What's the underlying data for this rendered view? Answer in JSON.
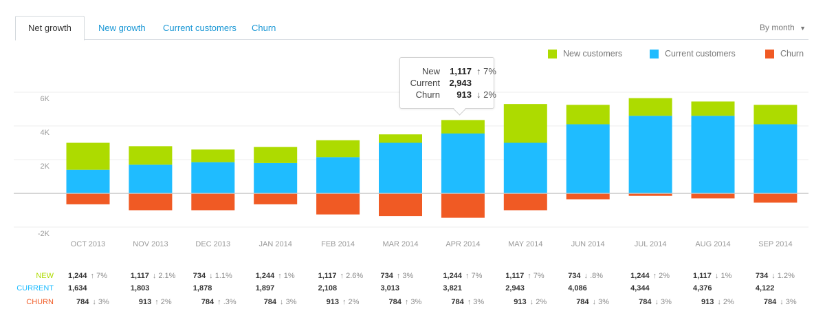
{
  "tabs": [
    {
      "label": "Net growth",
      "active": true
    },
    {
      "label": "New growth"
    },
    {
      "label": "Current customers"
    },
    {
      "label": "Churn"
    }
  ],
  "period_selector": {
    "label": "By month",
    "icon": "caret-down-icon"
  },
  "colors": {
    "new": "#addb00",
    "current": "#1fbcff",
    "churn": "#f05a24",
    "accent": "#1a97d5"
  },
  "chart_data": {
    "type": "bar",
    "stacked": true,
    "categories": [
      "OCT 2013",
      "NOV 2013",
      "DEC 2013",
      "JAN 2014",
      "FEB 2014",
      "MAR 2014",
      "APR 2014",
      "MAY 2014",
      "JUN 2014",
      "JUL 2014",
      "AUG 2014",
      "SEP 2014"
    ],
    "series": [
      {
        "name": "New customers",
        "key": "new",
        "values": [
          1600,
          1100,
          750,
          950,
          1000,
          500,
          800,
          2300,
          1150,
          1050,
          850,
          1150
        ]
      },
      {
        "name": "Current customers",
        "key": "current",
        "values": [
          1400,
          1700,
          1850,
          1800,
          2150,
          3000,
          3550,
          3000,
          4100,
          4600,
          4600,
          4100
        ]
      },
      {
        "name": "Churn",
        "key": "churn",
        "values": [
          -650,
          -1000,
          -1000,
          -650,
          -1250,
          -1350,
          -1450,
          -1000,
          -350,
          -150,
          -300,
          -550
        ]
      }
    ],
    "ylim": [
      -2000,
      6000
    ],
    "yticks": [
      {
        "v": 6000,
        "label": "6K"
      },
      {
        "v": 4000,
        "label": "4K"
      },
      {
        "v": 2000,
        "label": "2K"
      },
      {
        "v": -2000,
        "label": "-2K"
      }
    ],
    "grid": true,
    "legend": "top-right"
  },
  "tooltip": {
    "rows": [
      {
        "label": "New",
        "value": "1,117",
        "delta": "↑ 7%"
      },
      {
        "label": "Current",
        "value": "2,943",
        "delta": ""
      },
      {
        "label": "Churn",
        "value": "913",
        "delta": "↓ 2%"
      }
    ]
  },
  "table": {
    "rows": [
      {
        "label": "NEW",
        "key": "new",
        "cells": [
          [
            "1,244",
            "↑ 7%"
          ],
          [
            "1,117",
            "↓ 2.1%"
          ],
          [
            "734",
            "↓ 1.1%"
          ],
          [
            "1,244",
            "↑ 1%"
          ],
          [
            "1,117",
            "↑ 2.6%"
          ],
          [
            "734",
            "↑ 3%"
          ],
          [
            "1,244",
            "↑ 7%"
          ],
          [
            "1,117",
            "↑ 7%"
          ],
          [
            "734",
            "↓ .8%"
          ],
          [
            "1,244",
            "↑ 2%"
          ],
          [
            "1,117",
            "↓ 1%"
          ],
          [
            "734",
            "↓ 1.2%"
          ]
        ]
      },
      {
        "label": "CURRENT",
        "key": "current",
        "cells": [
          [
            "1,634",
            ""
          ],
          [
            "1,803",
            ""
          ],
          [
            "1,878",
            ""
          ],
          [
            "1,897",
            ""
          ],
          [
            "2,108",
            ""
          ],
          [
            "3,013",
            ""
          ],
          [
            "3,821",
            ""
          ],
          [
            "2,943",
            ""
          ],
          [
            "4,086",
            ""
          ],
          [
            "4,344",
            ""
          ],
          [
            "4,376",
            ""
          ],
          [
            "4,122",
            ""
          ]
        ]
      },
      {
        "label": "CHURN",
        "key": "churn",
        "cells": [
          [
            "784",
            "↓ 3%"
          ],
          [
            "913",
            "↑ 2%"
          ],
          [
            "784",
            "↑ .3%"
          ],
          [
            "784",
            "↓ 3%"
          ],
          [
            "913",
            "↑ 2%"
          ],
          [
            "784",
            "↑ 3%"
          ],
          [
            "784",
            "↑ 3%"
          ],
          [
            "913",
            "↓ 2%"
          ],
          [
            "784",
            "↓ 3%"
          ],
          [
            "784",
            "↓ 3%"
          ],
          [
            "913",
            "↓ 2%"
          ],
          [
            "784",
            "↓ 3%"
          ]
        ]
      }
    ]
  }
}
